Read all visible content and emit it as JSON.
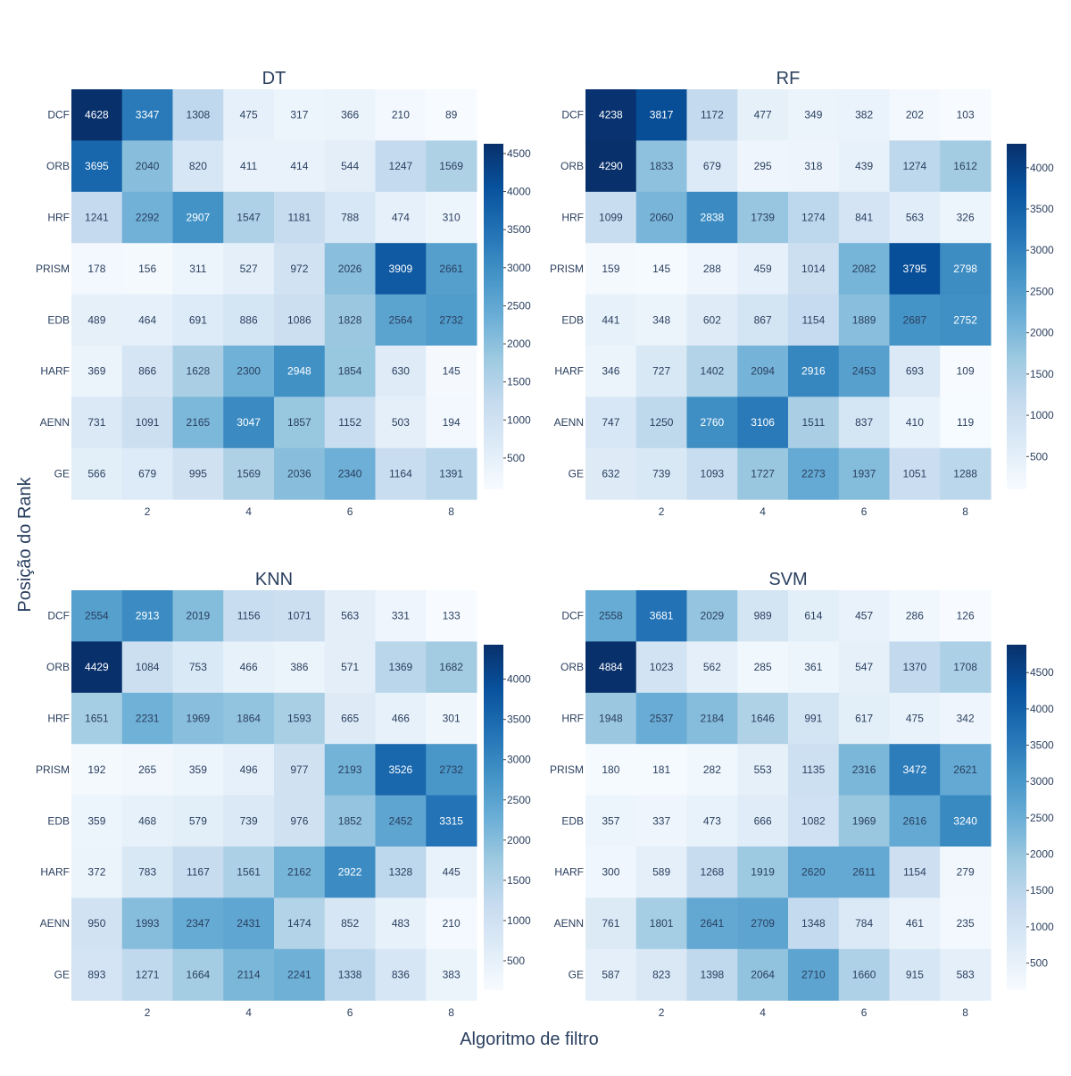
{
  "figure": {
    "xlabel": "Algoritmo de filtro",
    "ylabel": "Posição do Rank"
  },
  "chart_data": [
    {
      "type": "heatmap",
      "title": "DT",
      "rows": [
        "DCF",
        "ORB",
        "HRF",
        "PRISM",
        "EDB",
        "HARF",
        "AENN",
        "GE"
      ],
      "x": [
        1,
        2,
        3,
        4,
        5,
        6,
        7,
        8
      ],
      "x_ticks": [
        "2",
        "4",
        "6",
        "8"
      ],
      "colorbar_ticks": [
        "500",
        "1000",
        "1500",
        "2000",
        "2500",
        "3000",
        "3500",
        "4000",
        "4500"
      ],
      "zmin": 89,
      "zmax": 4628,
      "colorscale": "Blues",
      "values": [
        [
          4628,
          3347,
          1308,
          475,
          317,
          366,
          210,
          89
        ],
        [
          3695,
          2040,
          820,
          411,
          414,
          544,
          1247,
          1569
        ],
        [
          1241,
          2292,
          2907,
          1547,
          1181,
          788,
          474,
          310
        ],
        [
          178,
          156,
          311,
          527,
          972,
          2026,
          3909,
          2661
        ],
        [
          489,
          464,
          691,
          886,
          1086,
          1828,
          2564,
          2732
        ],
        [
          369,
          866,
          1628,
          2300,
          2948,
          1854,
          630,
          145
        ],
        [
          731,
          1091,
          2165,
          3047,
          1857,
          1152,
          503,
          194
        ],
        [
          566,
          679,
          995,
          1569,
          2036,
          2340,
          1164,
          1391
        ]
      ]
    },
    {
      "type": "heatmap",
      "title": "RF",
      "rows": [
        "DCF",
        "ORB",
        "HRF",
        "PRISM",
        "EDB",
        "HARF",
        "AENN",
        "GE"
      ],
      "x": [
        1,
        2,
        3,
        4,
        5,
        6,
        7,
        8
      ],
      "x_ticks": [
        "2",
        "4",
        "6",
        "8"
      ],
      "colorbar_ticks": [
        "500",
        "1000",
        "1500",
        "2000",
        "2500",
        "3000",
        "3500",
        "4000"
      ],
      "zmin": 103,
      "zmax": 4290,
      "colorscale": "Blues",
      "values": [
        [
          4238,
          3817,
          1172,
          477,
          349,
          382,
          202,
          103
        ],
        [
          4290,
          1833,
          679,
          295,
          318,
          439,
          1274,
          1612
        ],
        [
          1099,
          2060,
          2838,
          1739,
          1274,
          841,
          563,
          326
        ],
        [
          159,
          145,
          288,
          459,
          1014,
          2082,
          3795,
          2798
        ],
        [
          441,
          348,
          602,
          867,
          1154,
          1889,
          2687,
          2752
        ],
        [
          346,
          727,
          1402,
          2094,
          2916,
          2453,
          693,
          109
        ],
        [
          747,
          1250,
          2760,
          3106,
          1511,
          837,
          410,
          119
        ],
        [
          632,
          739,
          1093,
          1727,
          2273,
          1937,
          1051,
          1288
        ]
      ]
    },
    {
      "type": "heatmap",
      "title": "KNN",
      "rows": [
        "DCF",
        "ORB",
        "HRF",
        "PRISM",
        "EDB",
        "HARF",
        "AENN",
        "GE"
      ],
      "x": [
        1,
        2,
        3,
        4,
        5,
        6,
        7,
        8
      ],
      "x_ticks": [
        "2",
        "4",
        "6",
        "8"
      ],
      "colorbar_ticks": [
        "500",
        "1000",
        "1500",
        "2000",
        "2500",
        "3000",
        "3500",
        "4000"
      ],
      "zmin": 133,
      "zmax": 4429,
      "colorscale": "Blues",
      "values": [
        [
          2554,
          2913,
          2019,
          1156,
          1071,
          563,
          331,
          133
        ],
        [
          4429,
          1084,
          753,
          466,
          386,
          571,
          1369,
          1682
        ],
        [
          1651,
          2231,
          1969,
          1864,
          1593,
          665,
          466,
          301
        ],
        [
          192,
          265,
          359,
          496,
          977,
          2193,
          3526,
          2732
        ],
        [
          359,
          468,
          579,
          739,
          976,
          1852,
          2452,
          3315
        ],
        [
          372,
          783,
          1167,
          1561,
          2162,
          2922,
          1328,
          445
        ],
        [
          950,
          1993,
          2347,
          2431,
          1474,
          852,
          483,
          210
        ],
        [
          893,
          1271,
          1664,
          2114,
          2241,
          1338,
          836,
          383
        ]
      ]
    },
    {
      "type": "heatmap",
      "title": "SVM",
      "rows": [
        "DCF",
        "ORB",
        "HRF",
        "PRISM",
        "EDB",
        "HARF",
        "AENN",
        "GE"
      ],
      "x": [
        1,
        2,
        3,
        4,
        5,
        6,
        7,
        8
      ],
      "x_ticks": [
        "2",
        "4",
        "6",
        "8"
      ],
      "colorbar_ticks": [
        "500",
        "1000",
        "1500",
        "2000",
        "2500",
        "3000",
        "3500",
        "4000",
        "4500"
      ],
      "zmin": 126,
      "zmax": 4884,
      "colorscale": "Blues",
      "values": [
        [
          2558,
          3681,
          2029,
          989,
          614,
          457,
          286,
          126
        ],
        [
          4884,
          1023,
          562,
          285,
          361,
          547,
          1370,
          1708
        ],
        [
          1948,
          2537,
          2184,
          1646,
          991,
          617,
          475,
          342
        ],
        [
          180,
          181,
          282,
          553,
          1135,
          2316,
          3472,
          2621
        ],
        [
          357,
          337,
          473,
          666,
          1082,
          1969,
          2616,
          3240
        ],
        [
          300,
          589,
          1268,
          1919,
          2620,
          2611,
          1154,
          279
        ],
        [
          761,
          1801,
          2641,
          2709,
          1348,
          784,
          461,
          235
        ],
        [
          587,
          823,
          1398,
          2064,
          2710,
          1660,
          915,
          583
        ]
      ]
    }
  ]
}
